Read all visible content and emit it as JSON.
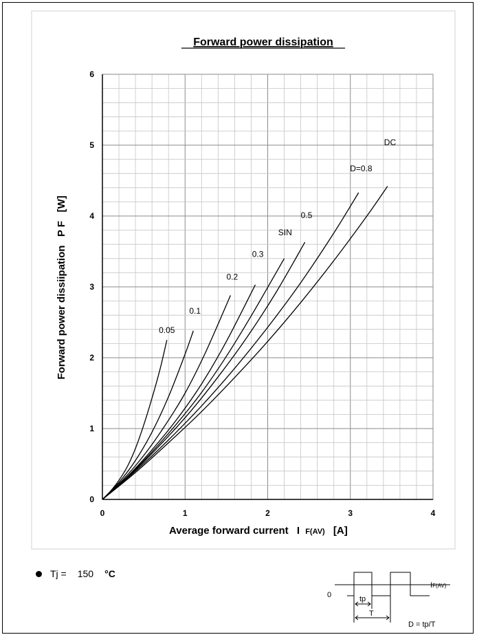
{
  "chart_data": {
    "type": "line",
    "title": "Forward power dissipation",
    "xlabel_main": "Average forward current",
    "xlabel_sym": "I",
    "xlabel_sub": "F(AV)",
    "xlabel_unit": "[A]",
    "ylabel": "Forward power dissiipation   P F   [W]",
    "xlim": [
      0,
      4
    ],
    "ylim": [
      0,
      6
    ],
    "xticks": [
      "0",
      "1",
      "2",
      "3",
      "4"
    ],
    "yticks": [
      "0",
      "1",
      "2",
      "3",
      "4",
      "5",
      "6"
    ],
    "grid": true,
    "series": [
      {
        "name": "0.05",
        "x": [
          0,
          0.1,
          0.2,
          0.3,
          0.4,
          0.5,
          0.6,
          0.7,
          0.78
        ],
        "y": [
          0,
          0.12,
          0.27,
          0.46,
          0.72,
          1.05,
          1.43,
          1.85,
          2.25
        ]
      },
      {
        "name": "0.1",
        "x": [
          0,
          0.2,
          0.4,
          0.6,
          0.8,
          1.0,
          1.1
        ],
        "y": [
          0,
          0.24,
          0.55,
          0.95,
          1.45,
          2.05,
          2.38
        ]
      },
      {
        "name": "0.2",
        "x": [
          0,
          0.25,
          0.5,
          0.75,
          1.0,
          1.25,
          1.55
        ],
        "y": [
          0,
          0.28,
          0.62,
          1.03,
          1.5,
          2.08,
          2.88
        ]
      },
      {
        "name": "0.3",
        "x": [
          0,
          0.3,
          0.6,
          0.9,
          1.2,
          1.5,
          1.85
        ],
        "y": [
          0,
          0.32,
          0.7,
          1.13,
          1.63,
          2.23,
          3.03
        ]
      },
      {
        "name": "SIN",
        "x": [
          0,
          0.3,
          0.6,
          0.9,
          1.2,
          1.5,
          1.8,
          2.2
        ],
        "y": [
          0,
          0.31,
          0.67,
          1.07,
          1.51,
          2.02,
          2.59,
          3.4
        ]
      },
      {
        "name": "0.5",
        "x": [
          0,
          0.35,
          0.7,
          1.05,
          1.4,
          1.75,
          2.1,
          2.45
        ],
        "y": [
          0,
          0.36,
          0.77,
          1.22,
          1.73,
          2.29,
          2.92,
          3.63
        ]
      },
      {
        "name": "D=0.8",
        "x": [
          0,
          0.4,
          0.8,
          1.2,
          1.6,
          2.0,
          2.4,
          2.8,
          3.1
        ],
        "y": [
          0,
          0.4,
          0.84,
          1.32,
          1.85,
          2.43,
          3.06,
          3.76,
          4.33
        ]
      },
      {
        "name": "DC",
        "x": [
          0,
          0.4,
          0.8,
          1.2,
          1.6,
          2.0,
          2.4,
          2.8,
          3.2,
          3.45
        ],
        "y": [
          0,
          0.38,
          0.8,
          1.24,
          1.72,
          2.23,
          2.78,
          3.37,
          4.0,
          4.42
        ]
      }
    ],
    "labels": [
      {
        "text": "0.05",
        "x": 0.78,
        "y": 2.35
      },
      {
        "text": "0.1",
        "x": 1.12,
        "y": 2.62
      },
      {
        "text": "0.2",
        "x": 1.57,
        "y": 3.1
      },
      {
        "text": "0.3",
        "x": 1.88,
        "y": 3.42
      },
      {
        "text": "SIN",
        "x": 2.21,
        "y": 3.73
      },
      {
        "text": "0.5",
        "x": 2.47,
        "y": 3.97
      },
      {
        "text": "D=0.8",
        "x": 3.13,
        "y": 4.63
      },
      {
        "text": "DC",
        "x": 3.48,
        "y": 5.0
      }
    ]
  },
  "legend": {
    "tj_label": "Tj =",
    "tj_value": "150",
    "tj_unit": "°C"
  },
  "waveform": {
    "zero_label": "0",
    "current_label": "I",
    "current_sub": "F(AV)",
    "tp_label": "tp",
    "t_label": "T",
    "duty_label": "D = tp/T"
  }
}
